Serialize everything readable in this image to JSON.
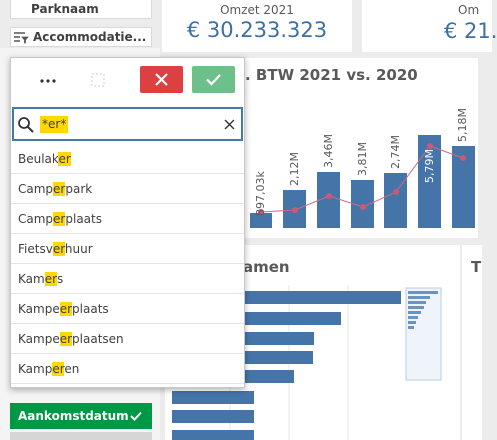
{
  "filters": {
    "parknaam": "Parknaam",
    "accommodatie": "Accommodatie..."
  },
  "kpis": [
    {
      "label": "Omzet 2021",
      "value": "€ 30.233.323"
    },
    {
      "label": "Om",
      "value": "€ 21."
    }
  ],
  "charts": [
    {
      "title": ". BTW 2021 vs. 2020",
      "bar_labels": [
        "897,03k",
        "2,12M",
        "3,46M",
        "3,81M",
        "2,74M",
        "5,79M",
        "5,18M"
      ]
    },
    {
      "title": "amen"
    },
    {
      "title": "T"
    }
  ],
  "dropdown": {
    "search": "*er*",
    "items": [
      {
        "segments": [
          "Beulak",
          "er"
        ]
      },
      {
        "segments": [
          "Camp",
          "er",
          "park"
        ]
      },
      {
        "segments": [
          "Camp",
          "er",
          "plaats"
        ]
      },
      {
        "segments": [
          "Fietsv",
          "er",
          "huur"
        ]
      },
      {
        "segments": [
          "Kam",
          "er",
          "s"
        ]
      },
      {
        "segments": [
          "Kampe",
          "er",
          "plaats"
        ]
      },
      {
        "segments": [
          "Kampe",
          "er",
          "plaatsen"
        ]
      },
      {
        "segments": [
          "Kamp",
          "er",
          "en"
        ]
      }
    ]
  },
  "field": "Aankomstdatum"
}
